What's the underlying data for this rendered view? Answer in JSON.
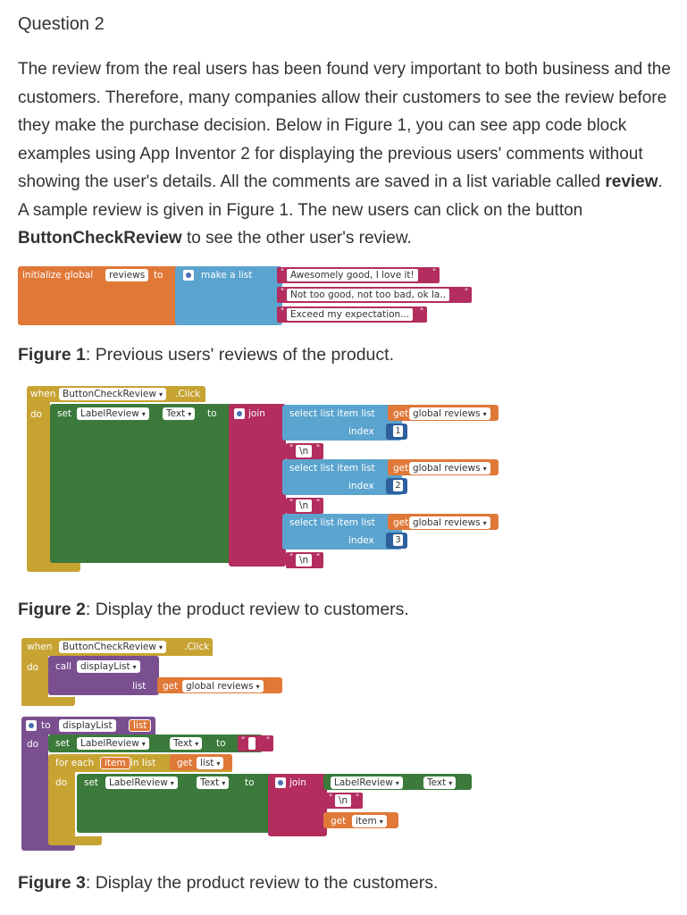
{
  "question": {
    "title": "Question 2",
    "p1": "The review from the real users has been found very important to both business and the customers. Therefore, many companies allow their customers to see the review before they make the purchase decision. Below in Figure 1, you can see app code block examples using App Inventor 2 for displaying the previous users' comments without showing the user's details. All the comments are saved in a list variable called ",
    "bold1": "review",
    "p2": ". A sample review is given in Figure 1. The new users can click on the button ",
    "bold2": "ButtonCheckReview",
    "p3": " to see the other user's review."
  },
  "figure1": {
    "caption_bold": "Figure 1",
    "caption_text": ": Previous users' reviews of the product.",
    "init_label": "initialize global",
    "var_name": "reviews",
    "to_label": "to",
    "make_list_label": "make a list",
    "items": [
      "Awesomely good, I love it!",
      "Not too good, not too bad, ok la..",
      "Exceed my expectation..."
    ]
  },
  "figure2": {
    "caption_bold": "Figure 2",
    "caption_text": ": Display the product review to customers.",
    "when_label": "when",
    "component": "ButtonCheckReview",
    "event": ".Click",
    "do_label": "do",
    "set_label": "set",
    "target": "LabelReview",
    "prop": "Text",
    "to_label": "to",
    "join_label": "join",
    "select_label": "select list item  list",
    "index_label": "index",
    "get_label": "get",
    "get_var": "global reviews",
    "newline": "\\n",
    "indexes": [
      "1",
      "2",
      "3"
    ]
  },
  "figure3": {
    "caption_bold": "Figure 3",
    "caption_text": ": Display the product review to the customers.",
    "when_label": "when",
    "component": "ButtonCheckReview",
    "event": ".Click",
    "do_label": "do",
    "call_label": "call",
    "proc_name": "displayList",
    "list_label": "list",
    "get_label": "get",
    "get_var": "global reviews",
    "to_label": "to",
    "param": "list",
    "set_label": "set",
    "target": "LabelReview",
    "prop": "Text",
    "for_each_label": "for each",
    "item_label": "item",
    "in_list_label": "in list",
    "join_label": "join",
    "newline": "\\n",
    "get_item": "item",
    "get_list": "list"
  },
  "colors": {
    "variable": "#e07838",
    "list": "#5ba4cf",
    "text": "#b32d5e",
    "event": "#c7a332",
    "component": "#3b7a3b",
    "procedure": "#7a4f90",
    "control": "#c7a332",
    "math": "#2e5f9e"
  }
}
